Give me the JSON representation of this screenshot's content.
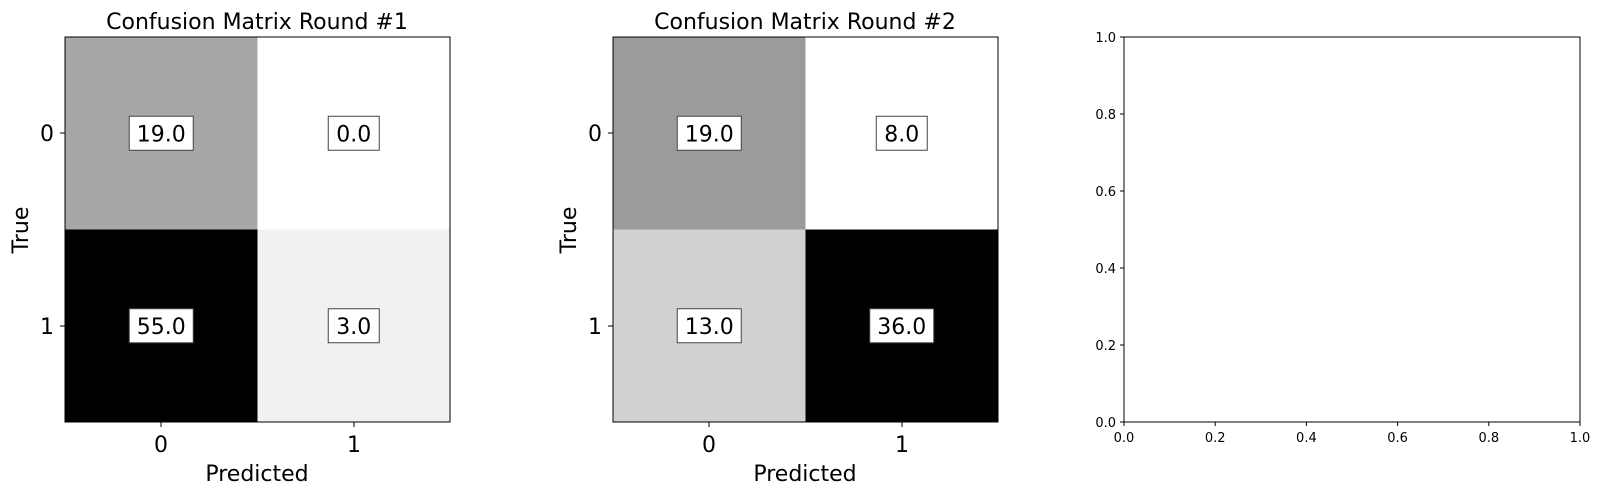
{
  "chart_data": [
    {
      "type": "heatmap",
      "title": "Confusion Matrix Round #1",
      "xlabel": "Predicted",
      "ylabel": "True",
      "x_ticks": [
        "0",
        "1"
      ],
      "y_ticks": [
        "0",
        "1"
      ],
      "values": [
        [
          19.0,
          0.0
        ],
        [
          55.0,
          3.0
        ]
      ],
      "value_labels": [
        [
          "19.0",
          "0.0"
        ],
        [
          "55.0",
          "3.0"
        ]
      ],
      "colormap": "greys",
      "color_range": [
        0,
        55
      ]
    },
    {
      "type": "heatmap",
      "title": "Confusion Matrix Round #2",
      "xlabel": "Predicted",
      "ylabel": "True",
      "x_ticks": [
        "0",
        "1"
      ],
      "y_ticks": [
        "0",
        "1"
      ],
      "values": [
        [
          19.0,
          8.0
        ],
        [
          13.0,
          36.0
        ]
      ],
      "value_labels": [
        [
          "19.0",
          "8.0"
        ],
        [
          "13.0",
          "36.0"
        ]
      ],
      "colormap": "greys",
      "color_range": [
        8,
        36
      ]
    },
    {
      "type": "scatter",
      "title": "",
      "xlabel": "",
      "ylabel": "",
      "xlim": [
        0.0,
        1.0
      ],
      "ylim": [
        0.0,
        1.0
      ],
      "x_ticks": [
        "0.0",
        "0.2",
        "0.4",
        "0.6",
        "0.8",
        "1.0"
      ],
      "y_ticks": [
        "0.0",
        "0.2",
        "0.4",
        "0.6",
        "0.8",
        "1.0"
      ],
      "series": []
    }
  ]
}
